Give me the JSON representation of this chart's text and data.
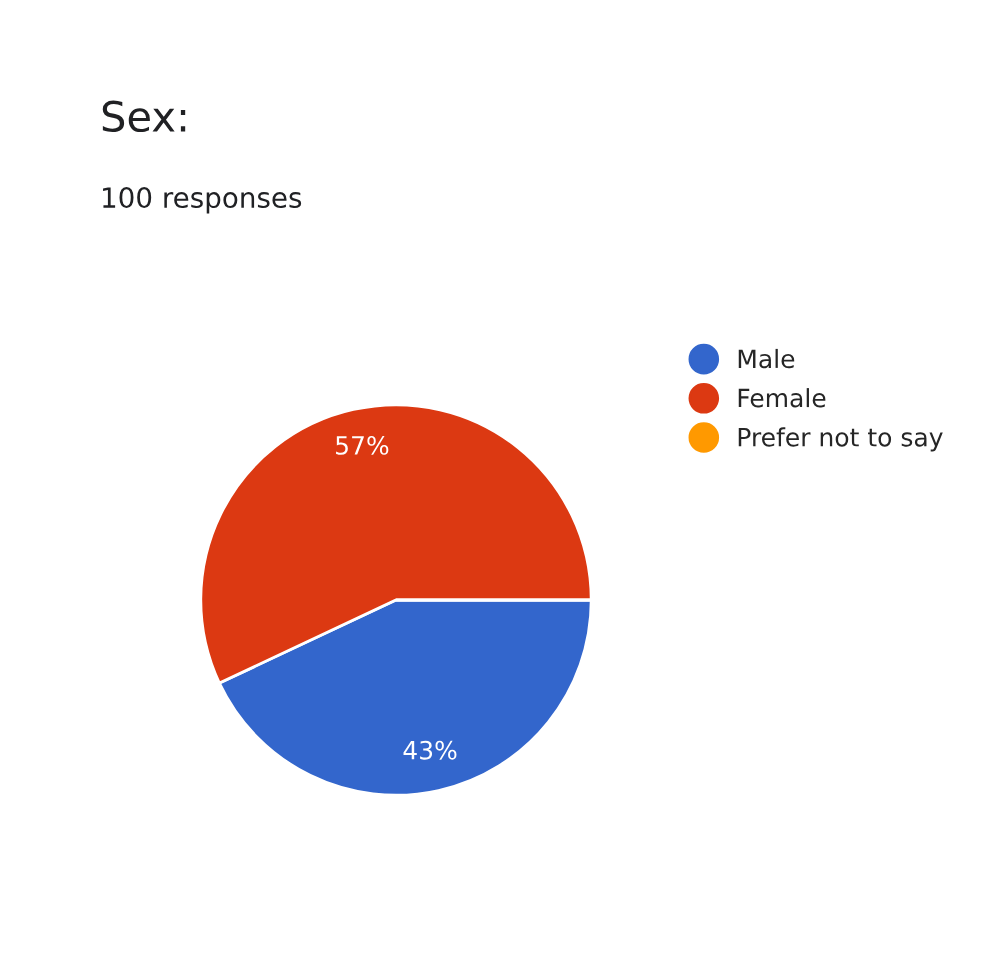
{
  "chart_data": {
    "type": "pie",
    "title": "Sex:",
    "subtitle": "100 responses",
    "categories": [
      "Male",
      "Female",
      "Prefer not to say"
    ],
    "values": [
      43,
      57,
      0
    ],
    "colors": [
      "#3366cc",
      "#dc3912",
      "#ff9900"
    ],
    "value_labels": [
      "43%",
      "57%",
      null
    ],
    "legend": "right"
  }
}
